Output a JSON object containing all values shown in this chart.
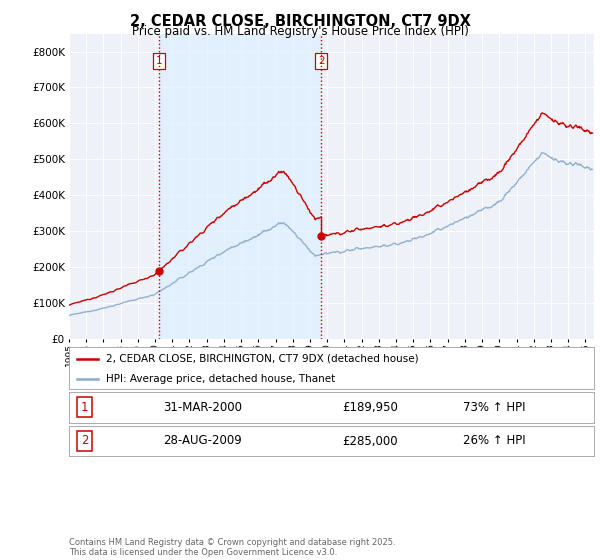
{
  "title": "2, CEDAR CLOSE, BIRCHINGTON, CT7 9DX",
  "subtitle": "Price paid vs. HM Land Registry's House Price Index (HPI)",
  "legend_line1": "2, CEDAR CLOSE, BIRCHINGTON, CT7 9DX (detached house)",
  "legend_line2": "HPI: Average price, detached house, Thanet",
  "sale1_label": "1",
  "sale1_date": "31-MAR-2000",
  "sale1_price": "£189,950",
  "sale1_hpi": "73% ↑ HPI",
  "sale1_year": 2000.25,
  "sale1_value": 189950,
  "sale2_label": "2",
  "sale2_date": "28-AUG-2009",
  "sale2_price": "£285,000",
  "sale2_hpi": "26% ↑ HPI",
  "sale2_year": 2009.65,
  "sale2_value": 285000,
  "price_color": "#cc0000",
  "hpi_color": "#88aacc",
  "vline_color": "#cc0000",
  "shade_color": "#ddeeff",
  "background_color": "#ffffff",
  "plot_bg_color": "#eef2f8",
  "grid_color": "#ffffff",
  "ylim_min": 0,
  "ylim_max": 850000,
  "xlim_start": 1995.0,
  "xlim_end": 2025.5,
  "footer": "Contains HM Land Registry data © Crown copyright and database right 2025.\nThis data is licensed under the Open Government Licence v3.0."
}
